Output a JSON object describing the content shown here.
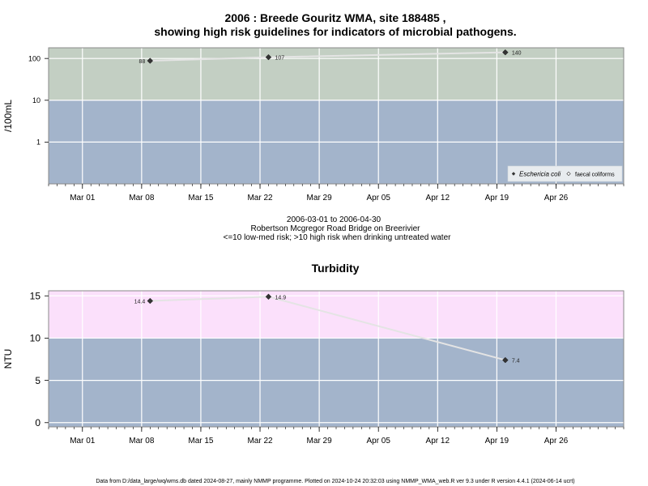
{
  "title_line1": "2006 : Breede Gouritz WMA, site 188485 ,",
  "title_line2": "showing high risk guidelines for indicators of microbial pathogens.",
  "subtitle_lines": [
    "2006-03-01 to 2006-04-30",
    "Robertson Mcgregor Road Bridge on Breerivier",
    "<=10 low-med risk; >10 high risk when drinking untreated water"
  ],
  "footer": "Data from D:/data_large/wq/wms.db dated 2024-08-27, mainly NMMP programme. Plotted on 2024-10-24 20:32:03 using NMMP_WMA_web.R ver 9.3 under R version 4.4.1 (2024-06-14 ucrt)",
  "colors": {
    "low_risk": "#a3b4cb",
    "high_risk_micro": "#c3cfc3",
    "high_risk_turbidity": "#fbe0fb",
    "grid": "#ffffff",
    "line": "#e4e4e4",
    "marker": "#333333"
  },
  "chart_data": [
    {
      "type": "line",
      "ylabel": "/100mL",
      "yscale": "log",
      "ylim": [
        0.1,
        180
      ],
      "yticks": [
        1,
        10,
        100
      ],
      "ytick_labels": [
        "1",
        "10",
        "100"
      ],
      "threshold": 10,
      "xlim": [
        "2006-02-25",
        "2006-05-04"
      ],
      "xticks": [
        "2006-03-01",
        "2006-03-08",
        "2006-03-15",
        "2006-03-22",
        "2006-03-29",
        "2006-04-05",
        "2006-04-12",
        "2006-04-19",
        "2006-04-26"
      ],
      "xtick_labels": [
        "Mar 01",
        "Mar 08",
        "Mar 15",
        "Mar 22",
        "Mar 29",
        "Apr 05",
        "Apr 12",
        "Apr 19",
        "Apr 26"
      ],
      "grid": true,
      "legend_position": "bottom-right",
      "series": [
        {
          "name": "Eschericia coli",
          "x": [
            "2006-03-09",
            "2006-03-23",
            "2006-04-20"
          ],
          "y": [
            88,
            107,
            140
          ],
          "labels": [
            "88",
            "107",
            "140"
          ]
        },
        {
          "name": "faecal coliforms",
          "x": [],
          "y": [],
          "labels": []
        }
      ]
    },
    {
      "type": "line",
      "title": "Turbidity",
      "ylabel": "NTU",
      "yscale": "linear",
      "ylim": [
        -0.5,
        15.6
      ],
      "yticks": [
        0,
        5,
        10,
        15
      ],
      "ytick_labels": [
        "0",
        "5",
        "10",
        "15"
      ],
      "threshold": 10,
      "xlim": [
        "2006-02-25",
        "2006-05-04"
      ],
      "xticks": [
        "2006-03-01",
        "2006-03-08",
        "2006-03-15",
        "2006-03-22",
        "2006-03-29",
        "2006-04-05",
        "2006-04-12",
        "2006-04-19",
        "2006-04-26"
      ],
      "xtick_labels": [
        "Mar 01",
        "Mar 08",
        "Mar 15",
        "Mar 22",
        "Mar 29",
        "Apr 05",
        "Apr 12",
        "Apr 19",
        "Apr 26"
      ],
      "grid": true,
      "series": [
        {
          "x": [
            "2006-03-09",
            "2006-03-23",
            "2006-04-20"
          ],
          "y": [
            14.4,
            14.9,
            7.4
          ],
          "labels": [
            "14.4",
            "14.9",
            "7.4"
          ]
        }
      ]
    }
  ]
}
